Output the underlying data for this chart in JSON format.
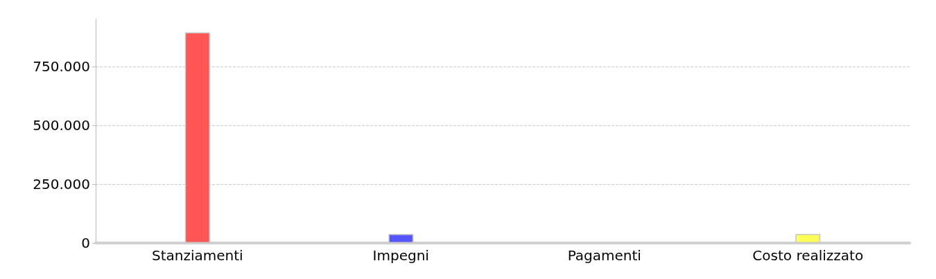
{
  "chart_data": {
    "type": "bar",
    "categories": [
      "Stanziamenti",
      "Impegni",
      "Pagamenti",
      "Costo realizzato"
    ],
    "values": [
      895000,
      38000,
      0,
      38000
    ],
    "colors": [
      "#ff5555",
      "#5555ff",
      null,
      "#ffff55"
    ],
    "ylim": [
      0,
      950000
    ],
    "yticks": [
      {
        "value": 0,
        "label": "0"
      },
      {
        "value": 250000,
        "label": "250.000"
      },
      {
        "value": 500000,
        "label": "500.000"
      },
      {
        "value": 750000,
        "label": "750.000"
      }
    ],
    "grid": "y"
  }
}
